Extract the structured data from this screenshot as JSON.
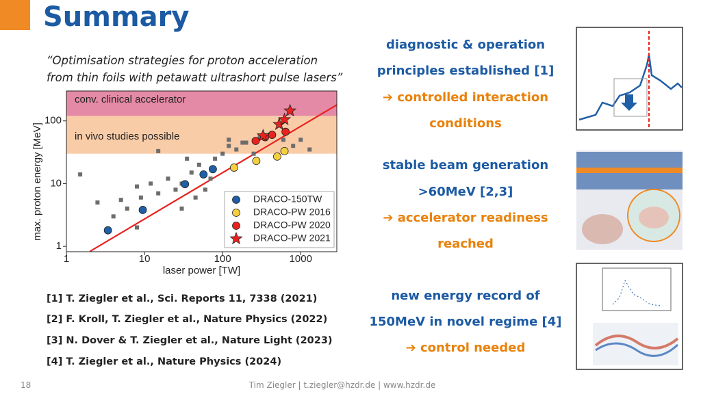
{
  "header": {
    "title": "Summary",
    "page_number": "18"
  },
  "quote": [
    "“Optimisation strategies for proton acceleration",
    "from thin foils with petawatt ultrashort pulse lasers”"
  ],
  "chart_data": {
    "type": "scatter",
    "xlabel": "laser power [TW]",
    "ylabel": "max. proton energy [MeV]",
    "xlog": true,
    "ylog": true,
    "xlim": [
      1,
      2900
    ],
    "ylim": [
      0.82,
      300
    ],
    "xticks": [
      1,
      10,
      100,
      1000
    ],
    "yticks": [
      1,
      10,
      100
    ],
    "bands": [
      {
        "label": "conv. clinical accelerator",
        "range": [
          120,
          300
        ],
        "color": "#e48aa6"
      },
      {
        "label": "in vivo studies possible",
        "range": [
          30,
          120
        ],
        "color": "#f9cca8"
      }
    ],
    "fit_line": {
      "x": [
        2,
        2900
      ],
      "y": [
        0.83,
        180
      ],
      "color": "#e8231f"
    },
    "series": [
      {
        "marker": "square",
        "color": "#6d6d6d",
        "x": [
          1.5,
          2.5,
          4,
          5,
          6,
          8,
          9,
          12,
          15,
          20,
          25,
          30,
          40,
          50,
          60,
          80,
          100,
          120,
          150,
          200,
          250,
          300,
          400,
          600,
          800,
          1000,
          1300,
          15,
          30,
          70,
          45,
          120,
          180,
          35,
          8
        ],
        "y": [
          14,
          5,
          3,
          5.5,
          4,
          9,
          6,
          10,
          7,
          12,
          8,
          10,
          15,
          20,
          8,
          25,
          30,
          40,
          35,
          45,
          30,
          55,
          60,
          50,
          40,
          50,
          35,
          33,
          4,
          12,
          6,
          50,
          45,
          25,
          2
        ]
      },
      {
        "name": "DRACO-150TW",
        "marker": "circle",
        "color": "#1f5fa6",
        "x": [
          3.4,
          9.5,
          33,
          57,
          75
        ],
        "y": [
          1.8,
          3.8,
          9.8,
          14,
          17
        ]
      },
      {
        "name": "DRACO-PW 2016",
        "marker": "circle",
        "color": "#f4d03f",
        "x": [
          140,
          270,
          500,
          620
        ],
        "y": [
          18,
          23,
          27,
          33
        ]
      },
      {
        "name": "DRACO-PW 2020",
        "marker": "circle",
        "color": "#e8231f",
        "x": [
          265,
          350,
          430,
          640
        ],
        "y": [
          48,
          55,
          60,
          67
        ]
      },
      {
        "name": "DRACO-PW 2021",
        "marker": "star",
        "color": "#e8231f",
        "x": [
          330,
          530,
          620,
          730
        ],
        "y": [
          58,
          88,
          105,
          145
        ]
      }
    ]
  },
  "findings": [
    {
      "lines": [
        "diagnostic & operation",
        "principles established [1]"
      ],
      "conclusion": [
        "➔ controlled interaction",
        "conditions"
      ]
    },
    {
      "lines": [
        "stable beam generation",
        ">60MeV [2,3]"
      ],
      "conclusion": [
        "➔  accelerator readiness",
        "reached"
      ]
    },
    {
      "lines": [
        "new energy record of",
        "150MeV in novel regime [4]"
      ],
      "conclusion": [
        "➔  control needed"
      ]
    }
  ],
  "references": [
    "[1] T. Ziegler et al., Sci. Reports 11, 7338 (2021)",
    "[2] F. Kroll, T. Ziegler et al., Nature Physics (2022)",
    "[3] N. Dover & T. Ziegler et al., Nature Light (2023)",
    "[4] T. Ziegler et al., Nature Physics (2024)"
  ],
  "footer": "Tim Ziegler | t.ziegler@hzdr.de | www.hzdr.de"
}
